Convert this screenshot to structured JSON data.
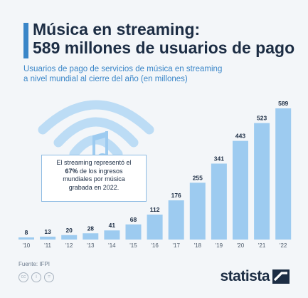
{
  "header": {
    "title_line1": "Música en streaming:",
    "title_line2": "589 millones de usuarios de pago",
    "subtitle_line1": "Usuarios de pago de servicios de música en streaming",
    "subtitle_line2": "a nivel mundial al cierre del año (en millones)"
  },
  "annotation": {
    "line1": "El streaming representó el",
    "bold": "67%",
    "line2_rest": " de los ingresos",
    "line3": "mundiales por música",
    "line4": "grabada en 2022."
  },
  "footer": {
    "source": "Fuente: IFPI",
    "brand": "statista"
  },
  "colors": {
    "bar": "#9dcbf0",
    "accent": "#3a86c8",
    "title": "#1c2d44",
    "icon": "#bcdcf5"
  },
  "icons": [
    "wifi-icon",
    "music-note-icon",
    "cc-icon",
    "statista-logo-icon"
  ],
  "chart_data": {
    "type": "bar",
    "categories": [
      "'10",
      "'11",
      "'12",
      "'13",
      "'14",
      "'15",
      "'16",
      "'17",
      "'18",
      "'19",
      "'20",
      "'21",
      "'22"
    ],
    "values": [
      8,
      13,
      20,
      28,
      41,
      68,
      112,
      176,
      255,
      341,
      443,
      523,
      589
    ],
    "ylim": [
      0,
      589
    ],
    "grid": false
  }
}
